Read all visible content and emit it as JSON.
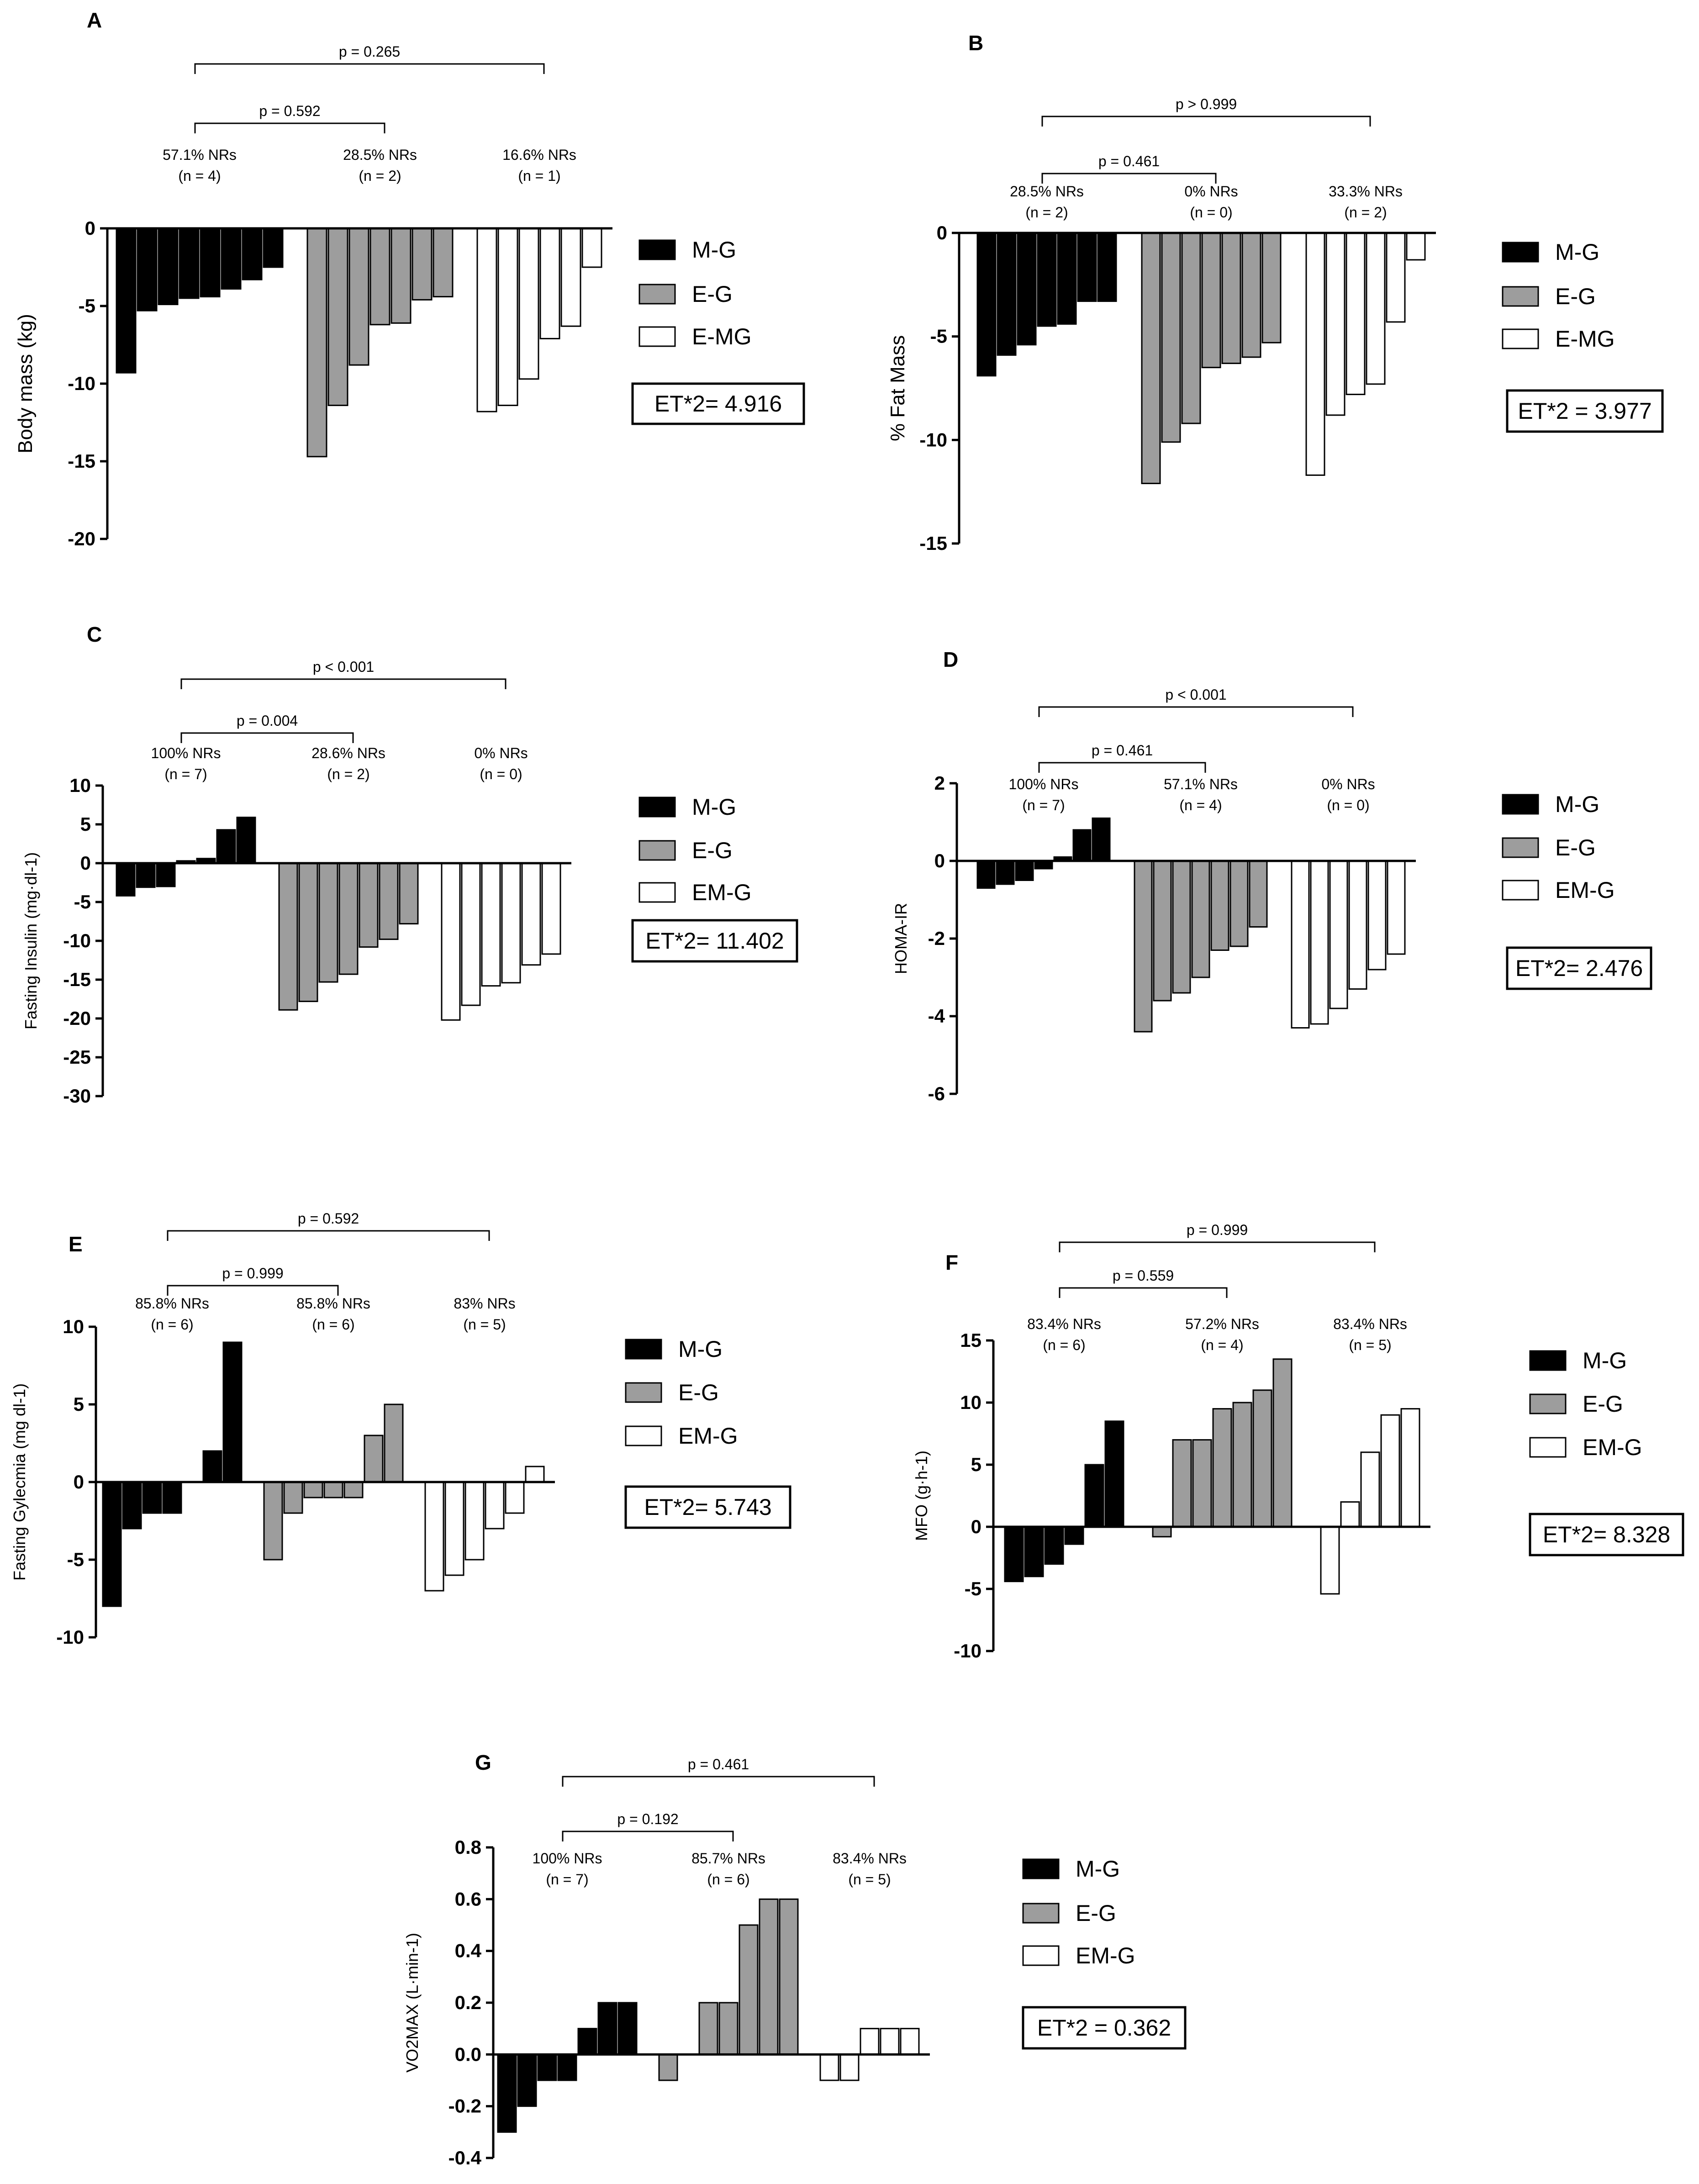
{
  "figure": {
    "description_none": ""
  },
  "groups": [
    "M-G",
    "E-G",
    "EM-G"
  ],
  "colors": {
    "M-G": "#000000",
    "E-G": "#9d9d9d",
    "EM-G": "#ffffff",
    "edge": "#000000"
  },
  "chart_data": [
    {
      "panel": "A",
      "type": "bar",
      "ylabel": "Body mass (kg)",
      "ylim": [
        -20,
        0
      ],
      "yticks": [
        0,
        -5,
        -10,
        -15,
        -20
      ],
      "series": [
        {
          "name": "M-G",
          "values": [
            -9.3,
            -5.3,
            -4.9,
            -4.5,
            -4.4,
            -3.9,
            -3.3,
            -2.5
          ]
        },
        {
          "name": "E-G",
          "values": [
            -14.7,
            -11.4,
            -8.8,
            -6.2,
            -6.1,
            -4.6,
            -4.4
          ]
        },
        {
          "name": "E-MG",
          "values": [
            -11.8,
            -11.4,
            -9.7,
            -7.1,
            -6.3,
            -2.5
          ]
        }
      ],
      "legend": [
        "M-G",
        "E-G",
        "E-MG"
      ],
      "nr": [
        {
          "pct": "57.1% NRs",
          "n": "(n = 4)"
        },
        {
          "pct": "28.5% NRs",
          "n": "(n = 2)"
        },
        {
          "pct": "16.6% NRs",
          "n": "(n = 1)"
        }
      ],
      "comparisons": [
        {
          "label": "p = 0.592",
          "from": 0,
          "to": 1
        },
        {
          "label": "p = 0.265",
          "from": 0,
          "to": 2
        }
      ],
      "et": "ET*2= 4.916"
    },
    {
      "panel": "B",
      "type": "bar",
      "ylabel": "% Fat Mass",
      "ylim": [
        -15,
        0
      ],
      "yticks": [
        0,
        -5,
        -10,
        -15
      ],
      "series": [
        {
          "name": "M-G",
          "values": [
            -6.9,
            -5.9,
            -5.4,
            -4.5,
            -4.4,
            -3.3,
            -3.3
          ]
        },
        {
          "name": "E-G",
          "values": [
            -12.1,
            -10.1,
            -9.2,
            -6.5,
            -6.3,
            -6.0,
            -5.3
          ]
        },
        {
          "name": "E-MG",
          "values": [
            -11.7,
            -8.8,
            -7.8,
            -7.3,
            -4.3,
            -1.3
          ]
        }
      ],
      "legend": [
        "M-G",
        "E-G",
        "E-MG"
      ],
      "nr": [
        {
          "pct": "28.5% NRs",
          "n": "(n = 2)"
        },
        {
          "pct": "0% NRs",
          "n": "(n = 0)"
        },
        {
          "pct": "33.3% NRs",
          "n": "(n = 2)"
        }
      ],
      "comparisons": [
        {
          "label": "p = 0.461",
          "from": 0,
          "to": 1
        },
        {
          "label": "p > 0.999",
          "from": 0,
          "to": 2
        }
      ],
      "et": "ET*2 = 3.977"
    },
    {
      "panel": "C",
      "type": "bar",
      "ylabel": "Fasting Insulin (mg·dl-1)",
      "ylim": [
        -30,
        10
      ],
      "yticks": [
        10,
        5,
        0,
        -5,
        -10,
        -15,
        -20,
        -25,
        -30
      ],
      "series": [
        {
          "name": "M-G",
          "values": [
            -4.2,
            -3.1,
            -3.0,
            0.3,
            0.6,
            4.3,
            5.9
          ]
        },
        {
          "name": "E-G",
          "values": [
            -18.9,
            -17.8,
            -15.3,
            -14.3,
            -10.8,
            -9.8,
            -7.8
          ]
        },
        {
          "name": "EM-G",
          "values": [
            -20.2,
            -18.3,
            -15.8,
            -15.4,
            -13.1,
            -11.7
          ]
        }
      ],
      "legend": [
        "M-G",
        "E-G",
        "EM-G"
      ],
      "nr": [
        {
          "pct": "100% NRs",
          "n": "(n = 7)"
        },
        {
          "pct": "28.6% NRs",
          "n": "(n = 2)"
        },
        {
          "pct": "0% NRs",
          "n": "(n = 0)"
        }
      ],
      "comparisons": [
        {
          "label": "p = 0.004",
          "from": 0,
          "to": 1
        },
        {
          "label": "p < 0.001",
          "from": 0,
          "to": 2
        }
      ],
      "et": "ET*2= 11.402"
    },
    {
      "panel": "D",
      "type": "bar",
      "ylabel": "HOMA-IR",
      "ylim": [
        -6,
        2
      ],
      "yticks": [
        2,
        0,
        -2,
        -4,
        -6
      ],
      "series": [
        {
          "name": "M-G",
          "values": [
            -0.7,
            -0.6,
            -0.5,
            -0.2,
            0.1,
            0.8,
            1.1
          ]
        },
        {
          "name": "E-G",
          "values": [
            -4.4,
            -3.6,
            -3.4,
            -3.0,
            -2.3,
            -2.2,
            -1.7
          ]
        },
        {
          "name": "EM-G",
          "values": [
            -4.3,
            -4.2,
            -3.8,
            -3.3,
            -2.8,
            -2.4
          ]
        }
      ],
      "legend": [
        "M-G",
        "E-G",
        "EM-G"
      ],
      "nr": [
        {
          "pct": "100% NRs",
          "n": "(n = 7)"
        },
        {
          "pct": "57.1% NRs",
          "n": "(n = 4)"
        },
        {
          "pct": "0% NRs",
          "n": "(n = 0)"
        }
      ],
      "comparisons": [
        {
          "label": "p = 0.461",
          "from": 0,
          "to": 1
        },
        {
          "label": "p < 0.001",
          "from": 0,
          "to": 2
        }
      ],
      "et": "ET*2= 2.476"
    },
    {
      "panel": "E",
      "type": "bar",
      "ylabel": "Fasting Gylecmia (mg dl-1)",
      "ylim": [
        -10,
        10
      ],
      "yticks": [
        10,
        5,
        0,
        -5,
        -10
      ],
      "series": [
        {
          "name": "M-G",
          "values": [
            -8,
            -3,
            -2,
            -2,
            0,
            2,
            9
          ]
        },
        {
          "name": "E-G",
          "values": [
            -5,
            -2,
            -1,
            -1,
            -1,
            3,
            5
          ]
        },
        {
          "name": "EM-G",
          "values": [
            -7,
            -6,
            -5,
            -3,
            -2,
            1
          ]
        }
      ],
      "legend": [
        "M-G",
        "E-G",
        "EM-G"
      ],
      "nr": [
        {
          "pct": "85.8% NRs",
          "n": "(n = 6)"
        },
        {
          "pct": "85.8% NRs",
          "n": "(n = 6)"
        },
        {
          "pct": "83% NRs",
          "n": "(n = 5)"
        }
      ],
      "comparisons": [
        {
          "label": "p = 0.999",
          "from": 0,
          "to": 1
        },
        {
          "label": "p = 0.592",
          "from": 0,
          "to": 2
        }
      ],
      "et": "ET*2= 5.743"
    },
    {
      "panel": "F",
      "type": "bar",
      "ylabel": "MFO (g·h-1)",
      "ylim": [
        -10,
        15
      ],
      "yticks": [
        15,
        10,
        5,
        0,
        -5,
        -10
      ],
      "series": [
        {
          "name": "M-G",
          "values": [
            -4.4,
            -4.0,
            -3.0,
            -1.4,
            5.0,
            8.5
          ]
        },
        {
          "name": "E-G",
          "values": [
            -0.8,
            7.0,
            7.0,
            9.5,
            10.0,
            11.0,
            13.5
          ]
        },
        {
          "name": "EM-G",
          "values": [
            -5.4,
            2.0,
            6.0,
            9.0,
            9.5
          ]
        }
      ],
      "legend": [
        "M-G",
        "E-G",
        "EM-G"
      ],
      "nr": [
        {
          "pct": "83.4% NRs",
          "n": "(n = 6)"
        },
        {
          "pct": "57.2% NRs",
          "n": "(n = 4)"
        },
        {
          "pct": "83.4% NRs",
          "n": "(n = 5)"
        }
      ],
      "comparisons": [
        {
          "label": "p = 0.559",
          "from": 0,
          "to": 1
        },
        {
          "label": "p = 0.999",
          "from": 0,
          "to": 2
        }
      ],
      "et": "ET*2= 8.328"
    },
    {
      "panel": "G",
      "type": "bar",
      "ylabel": "VO2MAX (L·min-1)",
      "ylim": [
        -0.4,
        0.8
      ],
      "yticks": [
        0.8,
        0.6,
        0.4,
        0.2,
        0.0,
        -0.2,
        -0.4
      ],
      "ytick_labels": [
        "0.8",
        "0.6",
        "0.4",
        "0.2",
        "0.0",
        "-0.2",
        "-0.4"
      ],
      "series": [
        {
          "name": "M-G",
          "values": [
            -0.3,
            -0.2,
            -0.1,
            -0.1,
            0.1,
            0.2,
            0.2
          ]
        },
        {
          "name": "E-G",
          "values": [
            -0.1,
            0.0,
            0.2,
            0.2,
            0.5,
            0.6,
            0.6
          ]
        },
        {
          "name": "EM-G",
          "values": [
            -0.1,
            -0.1,
            0.1,
            0.1,
            0.1
          ]
        }
      ],
      "legend": [
        "M-G",
        "E-G",
        "EM-G"
      ],
      "nr": [
        {
          "pct": "100% NRs",
          "n": "(n = 7)"
        },
        {
          "pct": "85.7% NRs",
          "n": "(n = 6)"
        },
        {
          "pct": "83.4% NRs",
          "n": "(n = 5)"
        }
      ],
      "comparisons": [
        {
          "label": "p = 0.192",
          "from": 0,
          "to": 1
        },
        {
          "label": "p = 0.461",
          "from": 0,
          "to": 2
        }
      ],
      "et": "ET*2 = 0.362"
    }
  ]
}
